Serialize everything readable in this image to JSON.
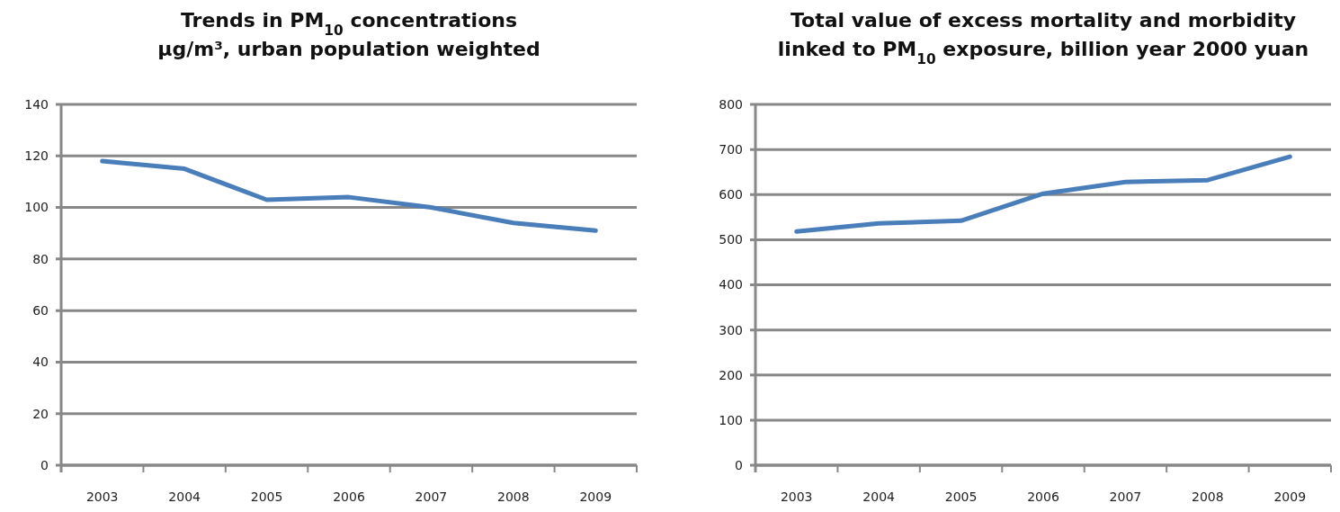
{
  "chart_data": [
    {
      "type": "line",
      "title": "Trends in PM$_{10}$ concentrations\nµg/m³, urban population weighted",
      "categories": [
        "2003",
        "2004",
        "2005",
        "2006",
        "2007",
        "2008",
        "2009"
      ],
      "series": [
        {
          "color": "#4a7ebb",
          "values": [
            118,
            115,
            103,
            104,
            100,
            94,
            91
          ]
        }
      ],
      "ylim": [
        0,
        140
      ],
      "yticks": [
        0,
        20,
        40,
        60,
        80,
        100,
        120,
        140
      ],
      "grid": "y",
      "marker": "none",
      "line_style": "solid"
    },
    {
      "type": "line",
      "title": "Total value of excess mortality and morbidity\nlinked to PM$_{10}$ exposure, billion year 2000 yuan",
      "categories": [
        "2003",
        "2004",
        "2005",
        "2006",
        "2007",
        "2008",
        "2009"
      ],
      "series": [
        {
          "color": "#4a7ebb",
          "values": [
            518,
            536,
            542,
            602,
            628,
            632,
            684
          ]
        }
      ],
      "ylim": [
        0,
        800
      ],
      "yticks": [
        0,
        100,
        200,
        300,
        400,
        500,
        600,
        700,
        800
      ],
      "grid": "y",
      "marker": "none",
      "line_style": "solid"
    }
  ]
}
